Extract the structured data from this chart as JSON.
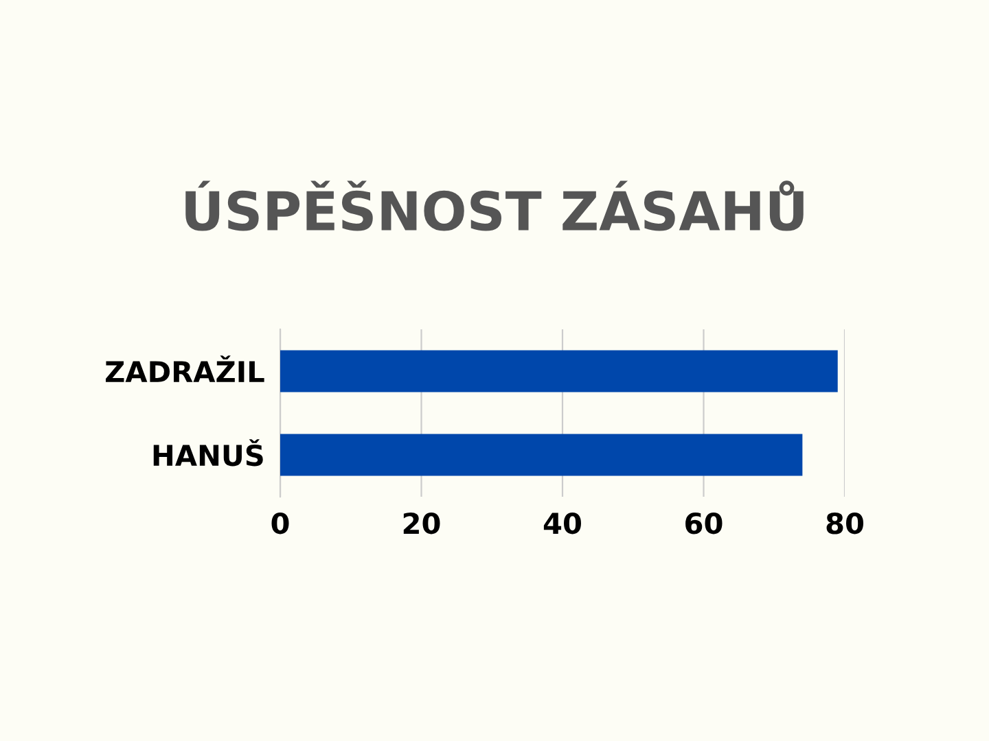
{
  "chart_data": {
    "type": "bar",
    "orientation": "horizontal",
    "title": "ÚSPĚŠNOST ZÁSAHŮ",
    "categories": [
      "ZADRAŽIL",
      "HANUŠ"
    ],
    "values": [
      79,
      74
    ],
    "color": "#0047ab",
    "xlim": [
      0,
      80
    ],
    "xticks": [
      0,
      20,
      40,
      60,
      80
    ],
    "grid": "x"
  }
}
